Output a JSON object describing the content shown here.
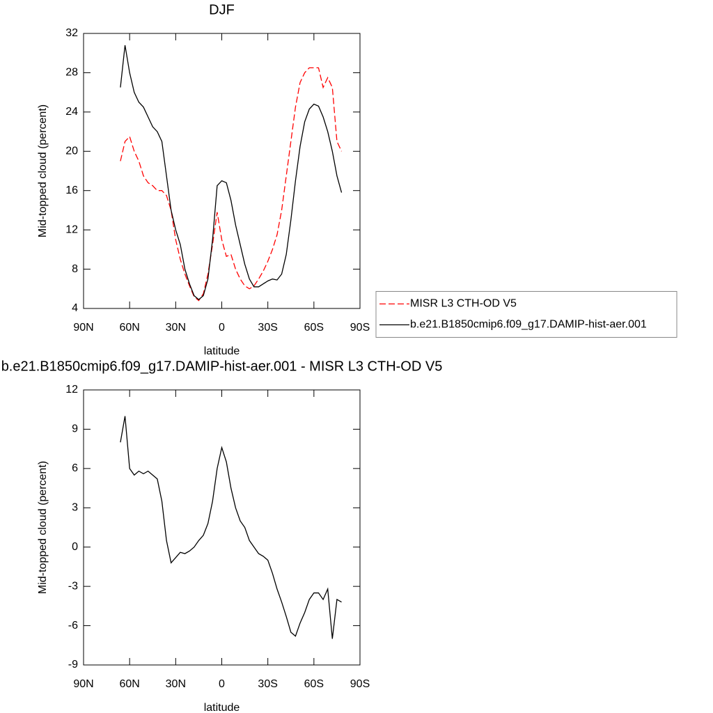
{
  "chart_data": [
    {
      "type": "line",
      "title": "DJF",
      "xlabel": "latitude",
      "ylabel": "Mid-topped cloud (percent)",
      "x": [
        66,
        63,
        60,
        57,
        54,
        51,
        48,
        45,
        42,
        39,
        36,
        33,
        30,
        27,
        24,
        21,
        18,
        15,
        12,
        9,
        6,
        3,
        0,
        -3,
        -6,
        -9,
        -12,
        -15,
        -18,
        -21,
        -24,
        -27,
        -30,
        -33,
        -36,
        -39,
        -42,
        -45,
        -48,
        -51,
        -54,
        -57,
        -60,
        -63,
        -66,
        -69,
        -72,
        -75,
        -78
      ],
      "series": [
        {
          "name": "MISR L3 CTH-OD V5",
          "color": "#ff0000",
          "dash": "dashed",
          "values": [
            19,
            21,
            21.5,
            20,
            19,
            17.5,
            16.8,
            16.5,
            16,
            16,
            15.5,
            14,
            11,
            9,
            7.5,
            6.3,
            5.2,
            4.8,
            5.5,
            7.5,
            10.5,
            13.8,
            11,
            9.3,
            9.5,
            8,
            7,
            6.3,
            6,
            6.3,
            7,
            7.8,
            8.8,
            10,
            11.5,
            14,
            17.5,
            21,
            24.5,
            27,
            28,
            28.5,
            28.5,
            28.5,
            26.5,
            27.5,
            26.5,
            21,
            20
          ]
        },
        {
          "name": "b.e21.B1850cmip6.f09_g17.DAMIP-hist-aer.001",
          "color": "#000000",
          "dash": "solid",
          "values": [
            26.5,
            30.8,
            28,
            26,
            25,
            24.5,
            23.5,
            22.5,
            22,
            21,
            17.5,
            14,
            12,
            10.5,
            8,
            6.5,
            5.3,
            4.9,
            5.3,
            7,
            11,
            16.5,
            17,
            16.8,
            15,
            12.5,
            10.5,
            8.5,
            7,
            6.2,
            6.2,
            6.5,
            6.8,
            7,
            6.9,
            7.5,
            9.5,
            13,
            17,
            20.5,
            23,
            24.3,
            24.8,
            24.6,
            23.5,
            22,
            20,
            17.5,
            15.8
          ]
        }
      ],
      "xlim": [
        90,
        -90
      ],
      "xticks": [
        {
          "value": 90,
          "label": "90N"
        },
        {
          "value": 60,
          "label": "60N"
        },
        {
          "value": 30,
          "label": "30N"
        },
        0,
        {
          "value": -30,
          "label": "30S"
        },
        {
          "value": -60,
          "label": "60S"
        },
        {
          "value": -90,
          "label": "90S"
        }
      ],
      "ylim": [
        4,
        32
      ],
      "yticks": [
        4,
        8,
        12,
        16,
        20,
        24,
        28,
        32
      ],
      "legend": "right"
    },
    {
      "type": "line",
      "title": "b.e21.B1850cmip6.f09_g17.DAMIP-hist-aer.001 - MISR L3 CTH-OD V5",
      "xlabel": "latitude",
      "ylabel": "Mid-topped cloud (percent)",
      "x": [
        66,
        63,
        60,
        57,
        54,
        51,
        48,
        45,
        42,
        39,
        36,
        33,
        30,
        27,
        24,
        21,
        18,
        15,
        12,
        9,
        6,
        3,
        0,
        -3,
        -6,
        -9,
        -12,
        -15,
        -18,
        -21,
        -24,
        -27,
        -30,
        -33,
        -36,
        -39,
        -42,
        -45,
        -48,
        -51,
        -54,
        -57,
        -60,
        -63,
        -66,
        -69,
        -72,
        -75,
        -78
      ],
      "values": [
        8,
        10,
        6,
        5.5,
        5.8,
        5.6,
        5.8,
        5.5,
        5.2,
        3.5,
        0.5,
        -1.2,
        -0.8,
        -0.4,
        -0.5,
        -0.3,
        0,
        0.5,
        0.9,
        1.8,
        3.5,
        6,
        7.6,
        6.5,
        4.5,
        3,
        2,
        1.5,
        0.5,
        0,
        -0.5,
        -0.7,
        -1,
        -2,
        -3.2,
        -4.2,
        -5.3,
        -6.5,
        -6.8,
        -5.8,
        -5,
        -4,
        -3.5,
        -3.5,
        -4,
        -3.2,
        -7,
        -4,
        -4.2
      ],
      "color": "#000000",
      "xlim": [
        90,
        -90
      ],
      "xticks": [
        {
          "value": 90,
          "label": "90N"
        },
        {
          "value": 60,
          "label": "60N"
        },
        {
          "value": 30,
          "label": "30N"
        },
        0,
        {
          "value": -30,
          "label": "30S"
        },
        {
          "value": -60,
          "label": "60S"
        },
        {
          "value": -90,
          "label": "90S"
        }
      ],
      "ylim": [
        -9,
        12
      ],
      "yticks": [
        -9,
        -6,
        -3,
        0,
        3,
        6,
        9,
        12
      ]
    }
  ]
}
